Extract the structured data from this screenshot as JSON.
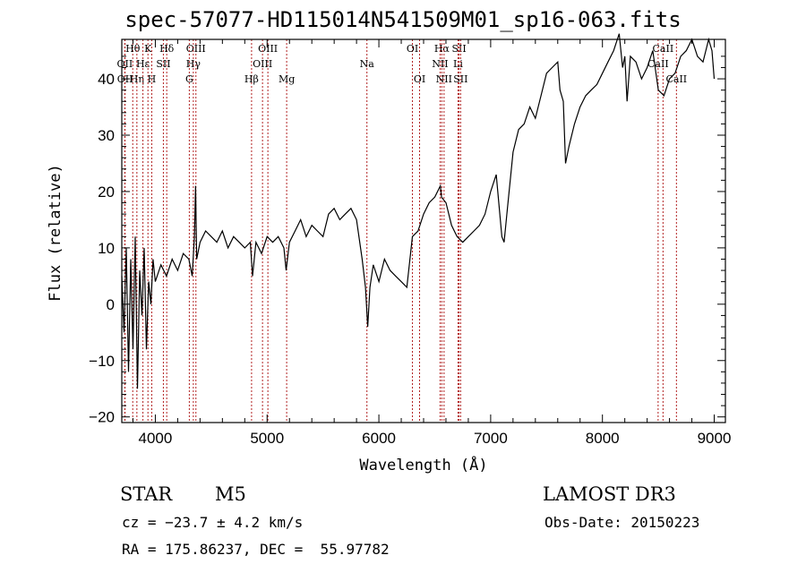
{
  "header": {
    "title": "spec-57077-HD115014N541509M01_sp16-063.fits"
  },
  "info": {
    "object_class": "STAR",
    "subclass": "M5",
    "survey": "LAMOST DR3",
    "cz": "cz = −23.7 ± 4.2 km/s",
    "obs_date": "Obs-Date: 20150223",
    "ra_dec": "RA = 175.86237, DEC =  55.97782"
  },
  "colors": {
    "spectrum": "#000000",
    "line_marker": "#b22222",
    "axis": "#000000"
  },
  "chart_data": {
    "type": "line",
    "title": "spec-57077-HD115014N541509M01_sp16-063.fits",
    "xlabel": "Wavelength (Å)",
    "ylabel": "Flux (relative)",
    "xlim": [
      3700,
      9100
    ],
    "ylim": [
      -21,
      47
    ],
    "xticks": [
      4000,
      5000,
      6000,
      7000,
      8000,
      9000
    ],
    "yticks": [
      -20,
      -10,
      0,
      10,
      20,
      30,
      40
    ],
    "series": [
      {
        "name": "flux",
        "x": [
          3700,
          3720,
          3740,
          3760,
          3780,
          3800,
          3820,
          3840,
          3860,
          3880,
          3900,
          3920,
          3940,
          3960,
          3980,
          4000,
          4050,
          4100,
          4150,
          4200,
          4250,
          4300,
          4330,
          4350,
          4360,
          4370,
          4400,
          4450,
          4500,
          4550,
          4600,
          4650,
          4700,
          4750,
          4800,
          4850,
          4870,
          4900,
          4950,
          5000,
          5050,
          5100,
          5150,
          5170,
          5200,
          5250,
          5300,
          5350,
          5400,
          5450,
          5500,
          5550,
          5600,
          5650,
          5700,
          5750,
          5800,
          5850,
          5880,
          5900,
          5920,
          5950,
          6000,
          6050,
          6100,
          6150,
          6200,
          6250,
          6300,
          6350,
          6400,
          6450,
          6500,
          6550,
          6560,
          6600,
          6650,
          6700,
          6750,
          6800,
          6850,
          6900,
          6950,
          7000,
          7050,
          7100,
          7120,
          7150,
          7200,
          7250,
          7300,
          7350,
          7400,
          7450,
          7500,
          7550,
          7600,
          7620,
          7650,
          7670,
          7700,
          7750,
          7800,
          7850,
          7900,
          7950,
          8000,
          8050,
          8100,
          8150,
          8180,
          8200,
          8220,
          8250,
          8300,
          8350,
          8400,
          8450,
          8500,
          8550,
          8600,
          8650,
          8700,
          8750,
          8800,
          8850,
          8900,
          8950,
          8980,
          9000
        ],
        "y": [
          5,
          -5,
          10,
          -12,
          8,
          -8,
          12,
          -15,
          6,
          -2,
          10,
          -8,
          4,
          0,
          8,
          4,
          7,
          5,
          8,
          6,
          9,
          8,
          5,
          12,
          21,
          8,
          11,
          13,
          12,
          11,
          13,
          10,
          12,
          11,
          10,
          11,
          5,
          11,
          9,
          12,
          11,
          12,
          10,
          6,
          11,
          13,
          15,
          12,
          14,
          13,
          12,
          16,
          17,
          15,
          16,
          17,
          15,
          8,
          3,
          -4,
          3,
          7,
          4,
          8,
          6,
          5,
          4,
          3,
          12,
          13,
          16,
          18,
          19,
          21,
          19,
          18,
          14,
          12,
          11,
          12,
          13,
          14,
          16,
          20,
          23,
          12,
          11,
          17,
          27,
          31,
          32,
          35,
          33,
          37,
          41,
          42,
          43,
          38,
          36,
          25,
          28,
          32,
          35,
          37,
          38,
          39,
          41,
          43,
          45,
          48,
          42,
          44,
          36,
          44,
          43,
          40,
          42,
          45,
          38,
          37,
          40,
          41,
          44,
          45,
          47,
          44,
          43,
          47,
          45,
          40
        ]
      }
    ],
    "line_markers": [
      {
        "name": "Hθ",
        "wave": 3798,
        "row": 1
      },
      {
        "name": "OII",
        "wave": 3727,
        "row": 2
      },
      {
        "name": "OII",
        "wave": 3729,
        "row": 3
      },
      {
        "name": "Hη",
        "wave": 3835,
        "row": 3
      },
      {
        "name": "K",
        "wave": 3934,
        "row": 1
      },
      {
        "name": "Hε",
        "wave": 3889,
        "row": 2
      },
      {
        "name": "H",
        "wave": 3968,
        "row": 3
      },
      {
        "name": "SII",
        "wave": 4072,
        "row": 2
      },
      {
        "name": "Hδ",
        "wave": 4102,
        "row": 1
      },
      {
        "name": "OIII",
        "wave": 4363,
        "row": 1
      },
      {
        "name": "Hγ",
        "wave": 4340,
        "row": 2
      },
      {
        "name": "G",
        "wave": 4304,
        "row": 3
      },
      {
        "name": "Hβ",
        "wave": 4861,
        "row": 3
      },
      {
        "name": "OIII",
        "wave": 5007,
        "row": 1
      },
      {
        "name": "OIII",
        "wave": 4959,
        "row": 2
      },
      {
        "name": "Mg",
        "wave": 5175,
        "row": 3
      },
      {
        "name": "Na",
        "wave": 5893,
        "row": 2
      },
      {
        "name": "OI",
        "wave": 6300,
        "row": 1
      },
      {
        "name": "OI",
        "wave": 6364,
        "row": 3
      },
      {
        "name": "Hα",
        "wave": 6563,
        "row": 1
      },
      {
        "name": "NII",
        "wave": 6548,
        "row": 2
      },
      {
        "name": "NII",
        "wave": 6583,
        "row": 3
      },
      {
        "name": "SII",
        "wave": 6717,
        "row": 1
      },
      {
        "name": "Li",
        "wave": 6708,
        "row": 2
      },
      {
        "name": "SII",
        "wave": 6731,
        "row": 3
      },
      {
        "name": "CaII",
        "wave": 8542,
        "row": 1
      },
      {
        "name": "CaII",
        "wave": 8498,
        "row": 2
      },
      {
        "name": "CaII",
        "wave": 8662,
        "row": 3
      }
    ]
  }
}
